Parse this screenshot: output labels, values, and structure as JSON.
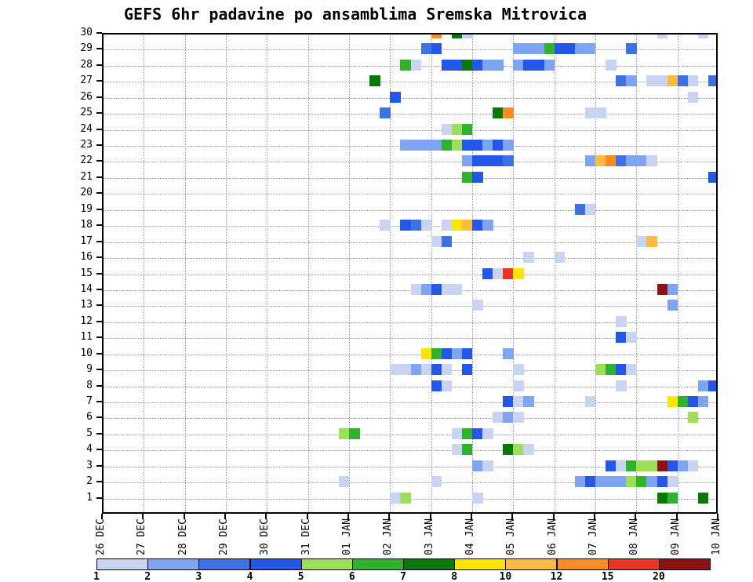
{
  "title": "GEFS 6hr padavine po ansamblima Sremska Mitrovica",
  "chart_data": {
    "type": "heatmap",
    "title": "GEFS 6hr padavine po ansamblima Sremska Mitrovica",
    "grid": "dotted",
    "x_axis": {
      "tick_labels": [
        "26 DEC",
        "27 DEC",
        "28 DEC",
        "29 DEC",
        "30 DEC",
        "31 DEC",
        "01 JAN",
        "02 JAN",
        "03 JAN",
        "04 JAN",
        "05 JAN",
        "06 JAN",
        "07 JAN",
        "08 JAN",
        "09 JAN",
        "10 JAN"
      ],
      "steps_per_day": 4,
      "total_steps": 60
    },
    "y_axis": {
      "tick_labels": [
        "30",
        "29",
        "28",
        "27",
        "26",
        "25",
        "24",
        "23",
        "22",
        "21",
        "20",
        "19",
        "18",
        "17",
        "16",
        "15",
        "14",
        "13",
        "12",
        "11",
        "10",
        "9",
        "8",
        "7",
        "6",
        "5",
        "4",
        "3",
        "2",
        "1"
      ],
      "members_max": 30,
      "members_min": 1
    },
    "legend": {
      "bins": [
        1,
        2,
        3,
        4,
        5,
        6,
        7,
        8,
        10,
        12,
        15,
        20
      ],
      "labels": [
        "1",
        "2",
        "3",
        "4",
        "5",
        "6",
        "7",
        "8",
        "10",
        "12",
        "15",
        "20"
      ],
      "colors": [
        "#c9d4f3",
        "#7ea4f2",
        "#3e70e6",
        "#2457e8",
        "#9ddf58",
        "#2fb32c",
        "#0a770a",
        "#ffe400",
        "#ffba40",
        "#fb8d20",
        "#e93323",
        "#8e1114"
      ]
    },
    "cells": [
      [
        30,
        32,
        12
      ],
      [
        30,
        34,
        7
      ],
      [
        30,
        35,
        1
      ],
      [
        30,
        54,
        1
      ],
      [
        30,
        58,
        1
      ],
      [
        29,
        31,
        3
      ],
      [
        29,
        32,
        4
      ],
      [
        29,
        40,
        2
      ],
      [
        29,
        41,
        2
      ],
      [
        29,
        42,
        2
      ],
      [
        29,
        43,
        6
      ],
      [
        29,
        44,
        4
      ],
      [
        29,
        45,
        4
      ],
      [
        29,
        46,
        2
      ],
      [
        29,
        47,
        2
      ],
      [
        29,
        51,
        3
      ],
      [
        28,
        29,
        6
      ],
      [
        28,
        30,
        1
      ],
      [
        28,
        33,
        4
      ],
      [
        28,
        34,
        4
      ],
      [
        28,
        35,
        7
      ],
      [
        28,
        36,
        4
      ],
      [
        28,
        37,
        2
      ],
      [
        28,
        38,
        2
      ],
      [
        28,
        40,
        2
      ],
      [
        28,
        41,
        4
      ],
      [
        28,
        42,
        4
      ],
      [
        28,
        43,
        2
      ],
      [
        28,
        49,
        1
      ],
      [
        27,
        26,
        7
      ],
      [
        27,
        50,
        3
      ],
      [
        27,
        51,
        2
      ],
      [
        27,
        53,
        1
      ],
      [
        27,
        54,
        1
      ],
      [
        27,
        55,
        10
      ],
      [
        27,
        56,
        3
      ],
      [
        27,
        57,
        1
      ],
      [
        27,
        59,
        3
      ],
      [
        26,
        28,
        4
      ],
      [
        26,
        57,
        1
      ],
      [
        25,
        27,
        3
      ],
      [
        25,
        38,
        7
      ],
      [
        25,
        39,
        12
      ],
      [
        25,
        47,
        1
      ],
      [
        25,
        48,
        1
      ],
      [
        24,
        33,
        1
      ],
      [
        24,
        34,
        5
      ],
      [
        24,
        35,
        6
      ],
      [
        23,
        29,
        2
      ],
      [
        23,
        30,
        2
      ],
      [
        23,
        31,
        2
      ],
      [
        23,
        32,
        2
      ],
      [
        23,
        33,
        6
      ],
      [
        23,
        34,
        5
      ],
      [
        23,
        35,
        4
      ],
      [
        23,
        36,
        4
      ],
      [
        23,
        37,
        2
      ],
      [
        23,
        38,
        4
      ],
      [
        23,
        39,
        2
      ],
      [
        22,
        35,
        2
      ],
      [
        22,
        36,
        4
      ],
      [
        22,
        37,
        4
      ],
      [
        22,
        38,
        4
      ],
      [
        22,
        39,
        3
      ],
      [
        22,
        47,
        2
      ],
      [
        22,
        48,
        10
      ],
      [
        22,
        49,
        12
      ],
      [
        22,
        50,
        3
      ],
      [
        22,
        51,
        2
      ],
      [
        22,
        52,
        2
      ],
      [
        22,
        53,
        1
      ],
      [
        21,
        35,
        6
      ],
      [
        21,
        36,
        4
      ],
      [
        21,
        59,
        4
      ],
      [
        19,
        46,
        3
      ],
      [
        19,
        47,
        1
      ],
      [
        18,
        27,
        1
      ],
      [
        18,
        29,
        4
      ],
      [
        18,
        30,
        3
      ],
      [
        18,
        31,
        1
      ],
      [
        18,
        33,
        1
      ],
      [
        18,
        34,
        8
      ],
      [
        18,
        35,
        10
      ],
      [
        18,
        36,
        4
      ],
      [
        18,
        37,
        2
      ],
      [
        17,
        32,
        1
      ],
      [
        17,
        33,
        3
      ],
      [
        17,
        52,
        1
      ],
      [
        17,
        53,
        10
      ],
      [
        16,
        41,
        1
      ],
      [
        16,
        44,
        1
      ],
      [
        15,
        37,
        4
      ],
      [
        15,
        38,
        1
      ],
      [
        15,
        39,
        15
      ],
      [
        15,
        40,
        8
      ],
      [
        14,
        30,
        1
      ],
      [
        14,
        31,
        2
      ],
      [
        14,
        32,
        4
      ],
      [
        14,
        33,
        1
      ],
      [
        14,
        34,
        1
      ],
      [
        14,
        54,
        20
      ],
      [
        14,
        55,
        2
      ],
      [
        13,
        36,
        1
      ],
      [
        13,
        55,
        2
      ],
      [
        12,
        50,
        1
      ],
      [
        11,
        50,
        4
      ],
      [
        11,
        51,
        1
      ],
      [
        10,
        31,
        8
      ],
      [
        10,
        32,
        6
      ],
      [
        10,
        33,
        4
      ],
      [
        10,
        34,
        2
      ],
      [
        10,
        35,
        4
      ],
      [
        10,
        39,
        2
      ],
      [
        9,
        28,
        1
      ],
      [
        9,
        29,
        1
      ],
      [
        9,
        30,
        2
      ],
      [
        9,
        31,
        1
      ],
      [
        9,
        32,
        4
      ],
      [
        9,
        33,
        1
      ],
      [
        9,
        35,
        4
      ],
      [
        9,
        40,
        1
      ],
      [
        9,
        48,
        5
      ],
      [
        9,
        49,
        6
      ],
      [
        9,
        50,
        4
      ],
      [
        9,
        51,
        1
      ],
      [
        8,
        32,
        4
      ],
      [
        8,
        33,
        1
      ],
      [
        8,
        40,
        1
      ],
      [
        8,
        50,
        1
      ],
      [
        8,
        58,
        2
      ],
      [
        8,
        59,
        4
      ],
      [
        7,
        39,
        4
      ],
      [
        7,
        40,
        1
      ],
      [
        7,
        41,
        2
      ],
      [
        7,
        47,
        1
      ],
      [
        7,
        55,
        8
      ],
      [
        7,
        56,
        6
      ],
      [
        7,
        57,
        4
      ],
      [
        7,
        58,
        2
      ],
      [
        6,
        38,
        1
      ],
      [
        6,
        39,
        2
      ],
      [
        6,
        40,
        1
      ],
      [
        6,
        57,
        5
      ],
      [
        5,
        23,
        5
      ],
      [
        5,
        24,
        6
      ],
      [
        5,
        34,
        1
      ],
      [
        5,
        35,
        6
      ],
      [
        5,
        36,
        4
      ],
      [
        5,
        37,
        1
      ],
      [
        4,
        34,
        1
      ],
      [
        4,
        35,
        6
      ],
      [
        4,
        39,
        7
      ],
      [
        4,
        40,
        5
      ],
      [
        4,
        41,
        1
      ],
      [
        3,
        36,
        2
      ],
      [
        3,
        37,
        1
      ],
      [
        3,
        49,
        4
      ],
      [
        3,
        50,
        1
      ],
      [
        3,
        51,
        6
      ],
      [
        3,
        52,
        5
      ],
      [
        3,
        53,
        5
      ],
      [
        3,
        54,
        20
      ],
      [
        3,
        55,
        4
      ],
      [
        3,
        56,
        2
      ],
      [
        3,
        57,
        1
      ],
      [
        2,
        23,
        1
      ],
      [
        2,
        32,
        1
      ],
      [
        2,
        46,
        2
      ],
      [
        2,
        47,
        4
      ],
      [
        2,
        48,
        2
      ],
      [
        2,
        49,
        2
      ],
      [
        2,
        50,
        2
      ],
      [
        2,
        51,
        5
      ],
      [
        2,
        52,
        6
      ],
      [
        2,
        53,
        2
      ],
      [
        2,
        54,
        4
      ],
      [
        2,
        55,
        1
      ],
      [
        1,
        28,
        1
      ],
      [
        1,
        29,
        5
      ],
      [
        1,
        36,
        1
      ],
      [
        1,
        54,
        7
      ],
      [
        1,
        55,
        6
      ],
      [
        1,
        58,
        7
      ]
    ]
  }
}
